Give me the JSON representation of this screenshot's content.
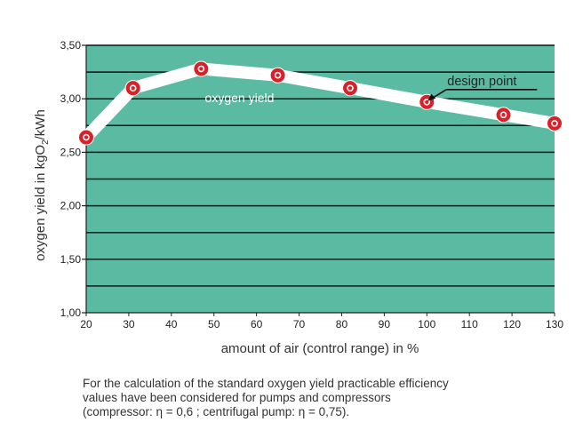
{
  "chart_data": {
    "type": "line",
    "title": "",
    "xlabel": "amount of air (control range) in %",
    "ylabel_parts": {
      "main": "oxygen yield in kgO",
      "sub": "2",
      "tail": "/kWh"
    },
    "xlim": [
      20,
      130
    ],
    "ylim": [
      1.0,
      3.5
    ],
    "x_ticks": [
      20,
      30,
      40,
      50,
      60,
      70,
      80,
      90,
      100,
      110,
      120,
      130
    ],
    "x_tick_labels": [
      "20",
      "30",
      "40",
      "50",
      "60",
      "70",
      "80",
      "90",
      "100",
      "110",
      "120",
      "130"
    ],
    "y_major_ticks": [
      1.0,
      1.5,
      2.0,
      2.5,
      3.0,
      3.5
    ],
    "y_tick_labels": [
      "1,00",
      "1,50",
      "2,00",
      "2,50",
      "3,00",
      "3,50"
    ],
    "y_gridlines": [
      1.25,
      1.5,
      1.75,
      2.0,
      2.25,
      2.5,
      2.75,
      3.0,
      3.25,
      3.5
    ],
    "grid": true,
    "colors": {
      "plot_bg": "#5bbaa2",
      "line": "#ffffff",
      "marker": "#d9212a",
      "grid": "#111111"
    },
    "series": [
      {
        "name": "oxygen yield",
        "x": [
          20,
          31,
          47,
          65,
          82,
          100,
          118,
          130
        ],
        "y": [
          2.64,
          3.1,
          3.28,
          3.22,
          3.1,
          2.97,
          2.85,
          2.77
        ]
      }
    ],
    "annotations": [
      {
        "text": "design point",
        "x": 100,
        "y": 2.97
      }
    ]
  },
  "footnote": {
    "lines": [
      "For the calculation of the standard oxygen yield practicable efficiency",
      "values have been considered for pumps and compressors",
      "(compressor: η = 0,6 ; centrifugal pump: η = 0,75)."
    ]
  }
}
